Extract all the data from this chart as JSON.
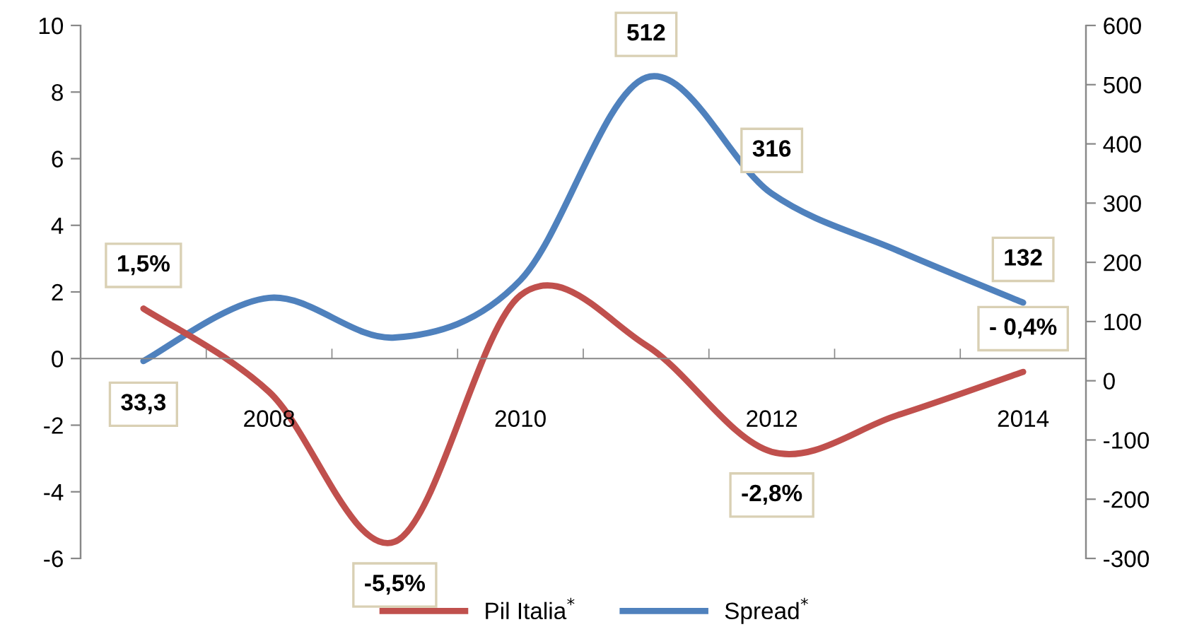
{
  "chart_data": {
    "type": "line",
    "categories": [
      null,
      "2008",
      null,
      "2010",
      null,
      "2012",
      null,
      "2014"
    ],
    "series": [
      {
        "name": "Pil Italia$^{*}$",
        "color": "#c0504d",
        "values": [
          1.5,
          -1.0,
          -5.5,
          1.9,
          0.4,
          -2.8,
          -1.7,
          -0.4
        ],
        "value_labels": [
          "1,5%",
          null,
          "-5,5%",
          null,
          null,
          "-2,8%",
          null,
          "- 0,4%"
        ]
      },
      {
        "name": "Spread$^{*}$",
        "color": "#4f81bd",
        "axis": "y2",
        "values": [
          33.3,
          140,
          73,
          170,
          512,
          316,
          220,
          132
        ],
        "value_labels": [
          "33,3",
          null,
          null,
          null,
          "512",
          "316",
          null,
          "132"
        ]
      }
    ],
    "ylim": [
      -6,
      10
    ],
    "yticks": [
      -6,
      -4,
      -2,
      0,
      2,
      4,
      6,
      8,
      10
    ],
    "y2lim": [
      -300,
      600
    ],
    "y2ticks": [
      -300,
      -200,
      -100,
      0,
      100,
      200,
      300,
      400,
      500,
      600
    ],
    "grid": false,
    "legend": "bottom",
    "marker": "none",
    "line_style": "solid"
  }
}
